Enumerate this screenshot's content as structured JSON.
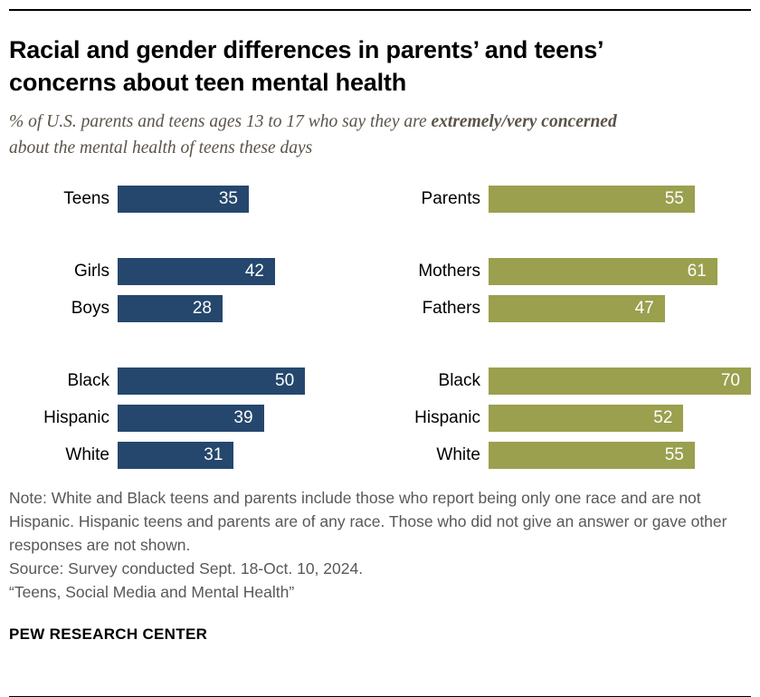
{
  "header": {
    "title_lines": [
      "Racial and gender differences in parents’ and teens’",
      "concerns about teen mental health"
    ],
    "subtitle": {
      "prefix": "% of U.S. parents and teens ages 13 to 17 who say they are ",
      "bold": "extremely/very concerned",
      "suffix": " about the mental health of teens these days"
    }
  },
  "chart_data": {
    "type": "bar",
    "orientation": "horizontal",
    "value_unit": "%",
    "xlim": [
      0,
      70
    ],
    "grid": false,
    "legend": "none",
    "panels": [
      {
        "series_name": "Teens",
        "color": "#25476D",
        "groups": [
          {
            "rows": [
              {
                "label": "Teens",
                "value": 35
              }
            ]
          },
          {
            "rows": [
              {
                "label": "Girls",
                "value": 42
              },
              {
                "label": "Boys",
                "value": 28
              }
            ]
          },
          {
            "rows": [
              {
                "label": "Black",
                "value": 50
              },
              {
                "label": "Hispanic",
                "value": 39
              },
              {
                "label": "White",
                "value": 31
              }
            ]
          }
        ]
      },
      {
        "series_name": "Parents",
        "color": "#9AA04E",
        "groups": [
          {
            "rows": [
              {
                "label": "Parents",
                "value": 55
              }
            ]
          },
          {
            "rows": [
              {
                "label": "Mothers",
                "value": 61
              },
              {
                "label": "Fathers",
                "value": 47
              }
            ]
          },
          {
            "rows": [
              {
                "label": "Black",
                "value": 70
              },
              {
                "label": "Hispanic",
                "value": 52
              },
              {
                "label": "White",
                "value": 55
              }
            ]
          }
        ]
      }
    ]
  },
  "notes": {
    "note": "Note: White and Black teens and parents include those who report being only one race and are not Hispanic. Hispanic teens and parents are of any race. Those who did not give an answer or gave other responses are not shown.",
    "source": "Source: Survey conducted Sept. 18-Oct. 10, 2024.",
    "report": "“Teens, Social Media and Mental Health”"
  },
  "footer": {
    "brand": "PEW RESEARCH CENTER"
  },
  "colors": {
    "teens_blue": "#25476D",
    "parents_green": "#9AA04E",
    "note_gray": "#58585a"
  }
}
